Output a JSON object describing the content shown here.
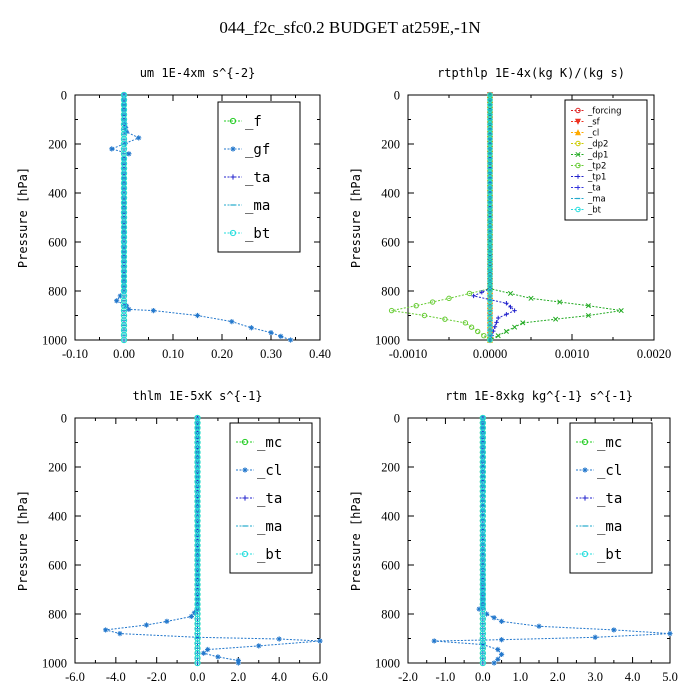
{
  "title": "044_f2c_sfc0.2  BUDGET at259E,-1N",
  "chart_data": [
    {
      "type": "line",
      "title": "um  1E-4xm s^{-2}",
      "ylabel": "Pressure [hPa]",
      "xlim": [
        -0.1,
        0.4
      ],
      "ylim": [
        1000,
        0
      ],
      "xticks": [
        "-0.10",
        "0.00",
        "0.10",
        "0.20",
        "0.30",
        "0.40"
      ],
      "xtick_values": [
        -0.1,
        0.0,
        0.1,
        0.2,
        0.3,
        0.4
      ],
      "yticks": [
        "0",
        "200",
        "400",
        "600",
        "800",
        "1000"
      ],
      "ytick_values": [
        0,
        200,
        400,
        600,
        800,
        1000
      ],
      "legend_size": "large",
      "series": [
        {
          "name": "_f",
          "color": "#22cc22",
          "marker": "o",
          "points": [
            [
              0,
              0
            ],
            [
              0,
              200
            ],
            [
              0,
              400
            ],
            [
              0,
              600
            ],
            [
              0,
              800
            ],
            [
              0,
              1000
            ]
          ]
        },
        {
          "name": "_gf",
          "color": "#2277cc",
          "marker": "*",
          "points": [
            [
              0,
              0
            ],
            [
              0,
              100
            ],
            [
              0.005,
              150
            ],
            [
              0.03,
              175
            ],
            [
              -0.025,
              220
            ],
            [
              0.01,
              240
            ],
            [
              0,
              260
            ],
            [
              0,
              400
            ],
            [
              0,
              800
            ],
            [
              -0.015,
              840
            ],
            [
              0.005,
              860
            ],
            [
              0.01,
              875
            ],
            [
              0.06,
              880
            ],
            [
              0.15,
              900
            ],
            [
              0.22,
              925
            ],
            [
              0.26,
              950
            ],
            [
              0.3,
              970
            ],
            [
              0.32,
              985
            ],
            [
              0.34,
              1000
            ]
          ]
        },
        {
          "name": "_ta",
          "color": "#2222cc",
          "marker": "+",
          "points": [
            [
              0,
              0
            ],
            [
              0,
              1000
            ]
          ]
        },
        {
          "name": "_ma",
          "color": "#22aacc",
          "marker": "-",
          "points": [
            [
              0,
              0
            ],
            [
              0,
              1000
            ]
          ]
        },
        {
          "name": "_bt",
          "color": "#22dddd",
          "marker": "o",
          "points": [
            [
              0,
              0
            ],
            [
              0,
              1000
            ]
          ]
        }
      ]
    },
    {
      "type": "line",
      "title": "rtpthlp  1E-4x(kg K)/(kg s)",
      "ylabel": "Pressure [hPa]",
      "xlim": [
        -0.001,
        0.002
      ],
      "ylim": [
        1000,
        0
      ],
      "xticks": [
        "-0.0010",
        "0.0000",
        "0.0010",
        "0.0020"
      ],
      "xtick_values": [
        -0.001,
        0.0,
        0.001,
        0.002
      ],
      "yticks": [
        "0",
        "200",
        "400",
        "600",
        "800",
        "1000"
      ],
      "ytick_values": [
        0,
        200,
        400,
        600,
        800,
        1000
      ],
      "legend_size": "small",
      "series": [
        {
          "name": "_forcing",
          "color": "#dd2222",
          "marker": "o",
          "points": [
            [
              0,
              0
            ],
            [
              0,
              1000
            ]
          ]
        },
        {
          "name": "_sf",
          "color": "#ee3322",
          "marker": "v",
          "points": [
            [
              0,
              0
            ],
            [
              0,
              1000
            ]
          ]
        },
        {
          "name": "_cl",
          "color": "#ffaa00",
          "marker": "^",
          "points": [
            [
              0,
              0
            ],
            [
              0,
              1000
            ]
          ]
        },
        {
          "name": "_dp2",
          "color": "#cccc00",
          "marker": "o",
          "points": [
            [
              0,
              0
            ],
            [
              0,
              1000
            ]
          ]
        },
        {
          "name": "_dp1",
          "color": "#22aa22",
          "marker": "x",
          "points": [
            [
              0,
              0
            ],
            [
              0,
              790
            ],
            [
              0.0005,
              830
            ],
            [
              0.0012,
              860
            ],
            [
              0.0016,
              880
            ],
            [
              0.0012,
              900
            ],
            [
              0.0004,
              930
            ],
            [
              0,
              1000
            ]
          ]
        },
        {
          "name": "_tp2",
          "color": "#66cc33",
          "marker": "o",
          "points": [
            [
              0,
              0
            ],
            [
              0,
              790
            ],
            [
              -0.0005,
              830
            ],
            [
              -0.0009,
              860
            ],
            [
              -0.0012,
              880
            ],
            [
              -0.0008,
              900
            ],
            [
              -0.0003,
              930
            ],
            [
              0,
              1000
            ]
          ]
        },
        {
          "name": "_tp1",
          "color": "#2222cc",
          "marker": "+",
          "points": [
            [
              0,
              0
            ],
            [
              0,
              790
            ],
            [
              -0.0002,
              820
            ],
            [
              0.0002,
              850
            ],
            [
              0.0003,
              880
            ],
            [
              0.0001,
              910
            ],
            [
              0,
              1000
            ]
          ]
        },
        {
          "name": "_ta",
          "color": "#3333dd",
          "marker": "+",
          "points": [
            [
              0,
              0
            ],
            [
              0,
              1000
            ]
          ]
        },
        {
          "name": "_ma",
          "color": "#22aacc",
          "marker": "-",
          "points": [
            [
              0,
              0
            ],
            [
              0,
              1000
            ]
          ]
        },
        {
          "name": "_bt",
          "color": "#22dddd",
          "marker": "o",
          "points": [
            [
              0,
              0
            ],
            [
              0,
              1000
            ]
          ]
        }
      ]
    },
    {
      "type": "line",
      "title": "thlm  1E-5xK s^{-1}",
      "ylabel": "Pressure [hPa]",
      "xlim": [
        -6.0,
        6.0
      ],
      "ylim": [
        1000,
        0
      ],
      "xticks": [
        "-6.0",
        "-4.0",
        "-2.0",
        "0.0",
        "2.0",
        "4.0",
        "6.0"
      ],
      "xtick_values": [
        -6.0,
        -4.0,
        -2.0,
        0.0,
        2.0,
        4.0,
        6.0
      ],
      "yticks": [
        "0",
        "200",
        "400",
        "600",
        "800",
        "1000"
      ],
      "ytick_values": [
        0,
        200,
        400,
        600,
        800,
        1000
      ],
      "legend_size": "large",
      "series": [
        {
          "name": "_mc",
          "color": "#22cc22",
          "marker": "o",
          "points": [
            [
              0,
              0
            ],
            [
              0,
              1000
            ]
          ]
        },
        {
          "name": "_cl",
          "color": "#2277cc",
          "marker": "*",
          "points": [
            [
              0,
              0
            ],
            [
              0,
              780
            ],
            [
              -0.3,
              810
            ],
            [
              -1.5,
              830
            ],
            [
              -2.5,
              845
            ],
            [
              -4.5,
              865
            ],
            [
              -3.8,
              880
            ],
            [
              0,
              895
            ],
            [
              4,
              902
            ],
            [
              6,
              910
            ],
            [
              3,
              930
            ],
            [
              0.5,
              945
            ],
            [
              0.3,
              960
            ],
            [
              1,
              975
            ],
            [
              2,
              990
            ],
            [
              2,
              1000
            ]
          ]
        },
        {
          "name": "_ta",
          "color": "#2222cc",
          "marker": "+",
          "points": [
            [
              0,
              0
            ],
            [
              0,
              1000
            ]
          ]
        },
        {
          "name": "_ma",
          "color": "#22aacc",
          "marker": "-",
          "points": [
            [
              0,
              0
            ],
            [
              0,
              1000
            ]
          ]
        },
        {
          "name": "_bt",
          "color": "#22dddd",
          "marker": "o",
          "points": [
            [
              0,
              0
            ],
            [
              0,
              1000
            ]
          ]
        }
      ]
    },
    {
      "type": "line",
      "title": "rtm  1E-8xkg kg^{-1} s^{-1}",
      "ylabel": "Pressure [hPa]",
      "xlim": [
        -2.0,
        5.0
      ],
      "ylim": [
        1000,
        0
      ],
      "xticks": [
        "-2.0",
        "-1.0",
        "0.0",
        "1.0",
        "2.0",
        "3.0",
        "4.0",
        "5.0"
      ],
      "xtick_values": [
        -2.0,
        -1.0,
        0.0,
        1.0,
        2.0,
        3.0,
        4.0,
        5.0
      ],
      "yticks": [
        "0",
        "200",
        "400",
        "600",
        "800",
        "1000"
      ],
      "ytick_values": [
        0,
        200,
        400,
        600,
        800,
        1000
      ],
      "legend_size": "large",
      "series": [
        {
          "name": "_mc",
          "color": "#22cc22",
          "marker": "o",
          "points": [
            [
              0,
              0
            ],
            [
              0,
              1000
            ]
          ]
        },
        {
          "name": "_cl",
          "color": "#2277cc",
          "marker": "*",
          "points": [
            [
              0,
              0
            ],
            [
              0,
              770
            ],
            [
              -0.1,
              780
            ],
            [
              0.1,
              800
            ],
            [
              0.5,
              830
            ],
            [
              1.5,
              850
            ],
            [
              3.5,
              865
            ],
            [
              5,
              880
            ],
            [
              3,
              895
            ],
            [
              0.5,
              905
            ],
            [
              -1.3,
              910
            ],
            [
              0,
              925
            ],
            [
              0.4,
              945
            ],
            [
              0.5,
              965
            ],
            [
              0.4,
              985
            ],
            [
              0.3,
              1000
            ]
          ]
        },
        {
          "name": "_ta",
          "color": "#2222cc",
          "marker": "+",
          "points": [
            [
              0,
              0
            ],
            [
              0,
              1000
            ]
          ]
        },
        {
          "name": "_ma",
          "color": "#22aacc",
          "marker": "-",
          "points": [
            [
              0,
              0
            ],
            [
              0,
              1000
            ]
          ]
        },
        {
          "name": "_bt",
          "color": "#22dddd",
          "marker": "o",
          "points": [
            [
              0,
              0
            ],
            [
              0,
              1000
            ]
          ]
        }
      ]
    }
  ]
}
